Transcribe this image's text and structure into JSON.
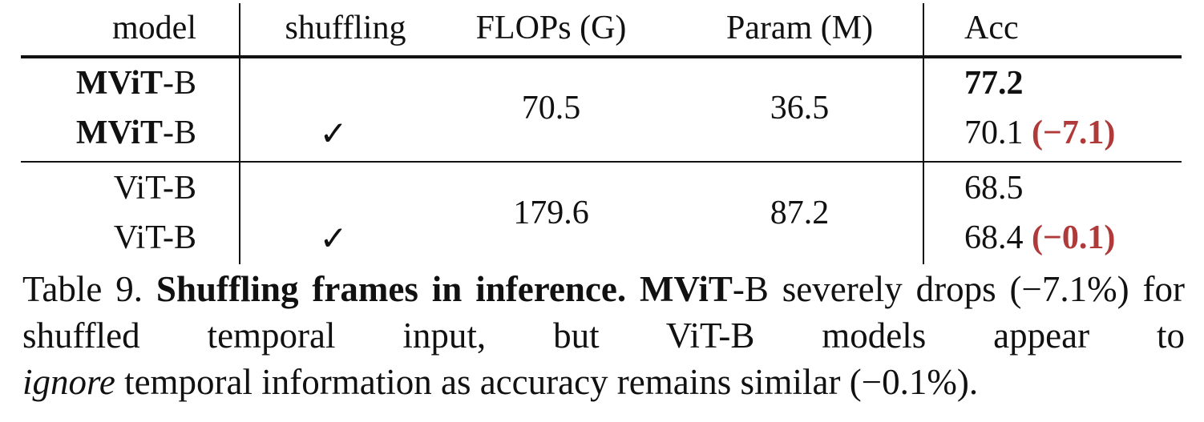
{
  "table": {
    "headers": {
      "model": "model",
      "shuffling": "shuffling",
      "flops": "FLOPs (G)",
      "param": "Param (M)",
      "acc": "Acc"
    },
    "groups": [
      {
        "flops": "70.5",
        "param": "36.5",
        "rows": [
          {
            "model_bold": "MViT",
            "model_suffix": "-B",
            "shuffled": "",
            "acc": "77.2",
            "acc_bold": true,
            "delta": ""
          },
          {
            "model_bold": "MViT",
            "model_suffix": "-B",
            "shuffled": "✓",
            "acc": "70.1",
            "acc_bold": false,
            "delta": "(−7.1)"
          }
        ]
      },
      {
        "flops": "179.6",
        "param": "87.2",
        "rows": [
          {
            "model": "ViT-B",
            "shuffled": "",
            "acc": "68.5",
            "delta": ""
          },
          {
            "model": "ViT-B",
            "shuffled": "✓",
            "acc": "68.4",
            "delta": "(−0.1)"
          }
        ]
      }
    ]
  },
  "caption": {
    "label": "Table 9.",
    "title": "Shuffling frames in inference.",
    "mvit_bold": "MViT",
    "text1": "-B severely drops (−7.1%) for shuffled temporal input, but ViT-B models appear to",
    "ignore": "ignore",
    "text2": "temporal information as accuracy remains similar (−0.1%)."
  },
  "colors": {
    "delta_red": "#b03a3a",
    "text": "#111111"
  }
}
